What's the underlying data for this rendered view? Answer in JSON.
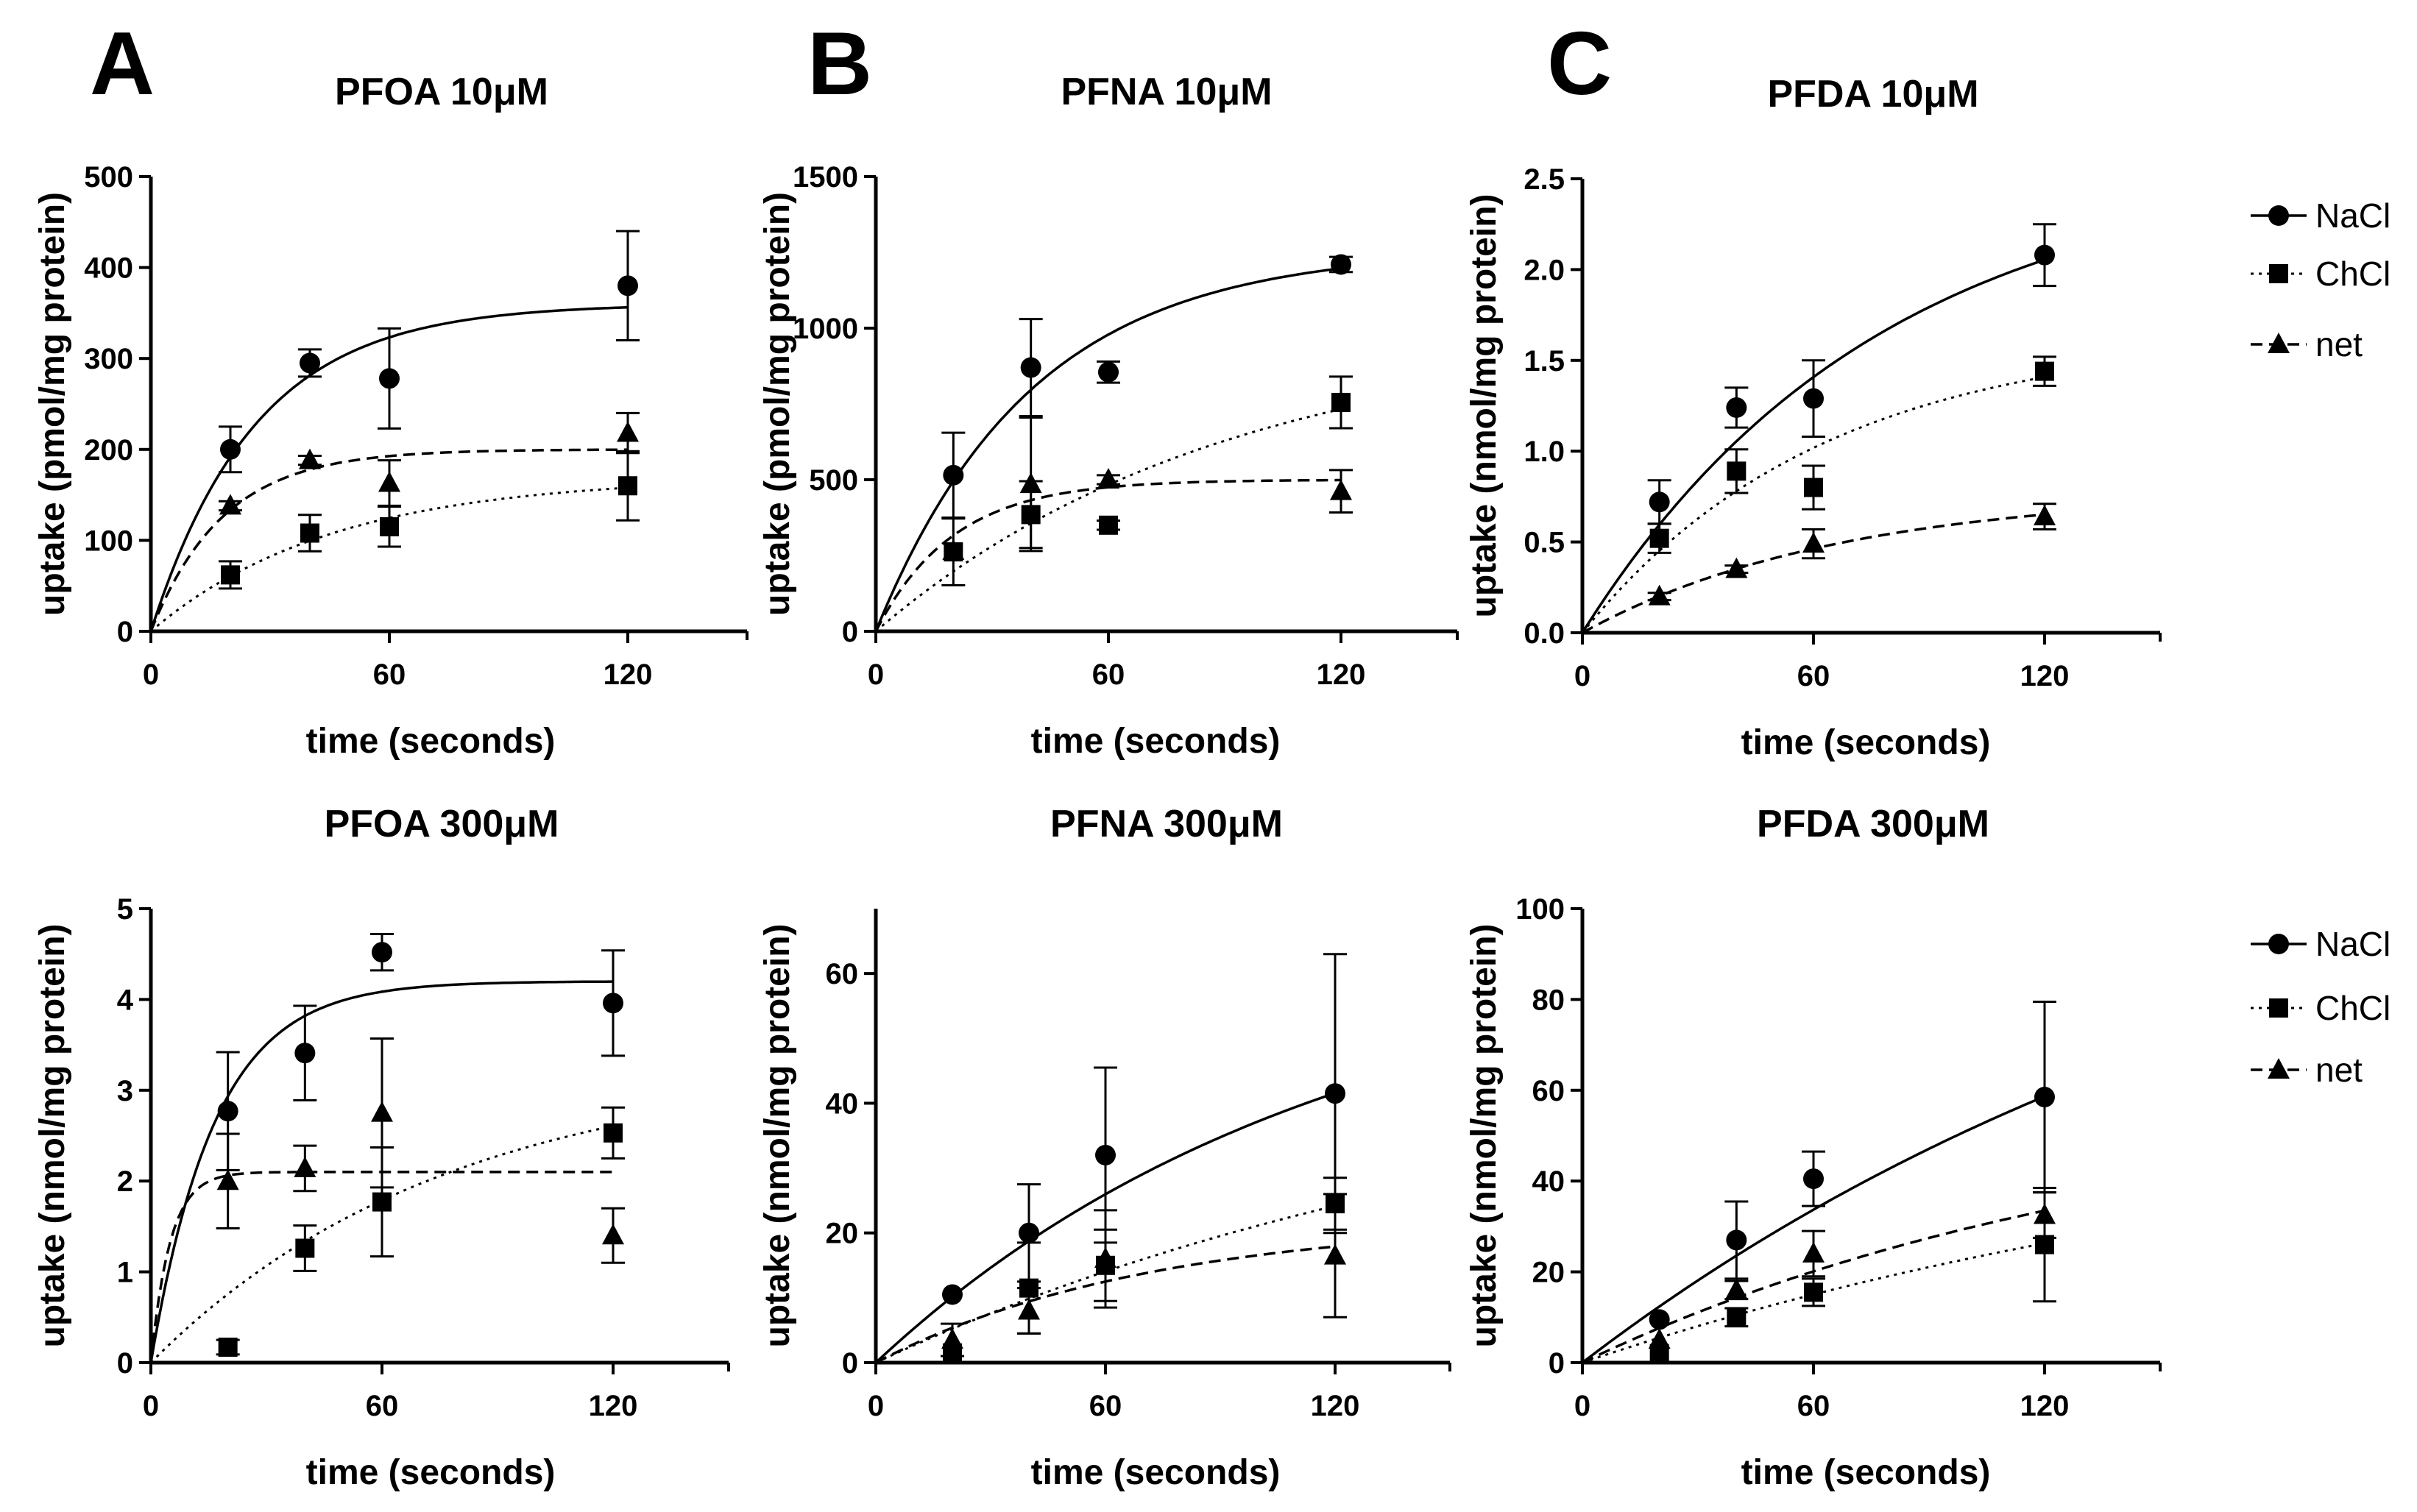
{
  "figure": {
    "panel_labels": [
      "A",
      "B",
      "C"
    ],
    "series_names": [
      "NaCl",
      "ChCl",
      "net"
    ],
    "legends": [
      {
        "entries": [
          {
            "name": "NaCl",
            "marker": "circle",
            "line": "solid"
          },
          {
            "name": "ChCl",
            "marker": "square",
            "line": "dotted"
          },
          {
            "name": "net",
            "marker": "triangle",
            "line": "dashed"
          }
        ]
      },
      {
        "entries": [
          {
            "name": "NaCl",
            "marker": "circle",
            "line": "solid"
          },
          {
            "name": "ChCl",
            "marker": "square",
            "line": "dotted"
          },
          {
            "name": "net",
            "marker": "triangle",
            "line": "dashed"
          }
        ]
      }
    ]
  },
  "chart_data": [
    {
      "type": "scatter",
      "title": "PFOA 10μM",
      "xlabel": "time (seconds)",
      "ylabel": "uptake (pmol/mg protein)",
      "xlim": [
        0,
        150
      ],
      "ylim": [
        0,
        500
      ],
      "xticks": [
        "0",
        "60",
        "120"
      ],
      "yticks": [
        "0",
        "100",
        "200",
        "300",
        "400",
        "500"
      ],
      "ytick_values": [
        0,
        100,
        200,
        300,
        400,
        500
      ],
      "x": [
        20,
        40,
        60,
        120
      ],
      "series": [
        {
          "name": "NaCl",
          "marker": "circle",
          "values": [
            200,
            295,
            278,
            380
          ],
          "err": [
            25,
            15,
            55,
            60
          ],
          "fit": {
            "vmax": 360,
            "k": 0.038
          }
        },
        {
          "name": "ChCl",
          "marker": "square",
          "values": [
            62,
            108,
            115,
            160
          ],
          "err": [
            15,
            20,
            22,
            38
          ],
          "fit": {
            "vmax": 170,
            "k": 0.022
          }
        },
        {
          "name": "net",
          "marker": "triangle",
          "values": [
            138,
            188,
            163,
            218
          ],
          "err": [
            5,
            5,
            25,
            22
          ],
          "fit": {
            "vmax": 200,
            "k": 0.055
          }
        }
      ]
    },
    {
      "type": "scatter",
      "title": "PFNA 10μM",
      "xlabel": "time (seconds)",
      "ylabel": "uptake (pmol/mg protein)",
      "xlim": [
        0,
        150
      ],
      "ylim": [
        0,
        1500
      ],
      "xticks": [
        "0",
        "60",
        "120"
      ],
      "yticks": [
        "0",
        "500",
        "1000",
        "1500"
      ],
      "ytick_values": [
        0,
        500,
        1000,
        1500
      ],
      "x": [
        20,
        40,
        60,
        120
      ],
      "series": [
        {
          "name": "NaCl",
          "marker": "circle",
          "values": [
            515,
            870,
            855,
            1210
          ],
          "err": [
            140,
            160,
            35,
            25
          ],
          "fit": {
            "vmax": 1260,
            "k": 0.025
          }
        },
        {
          "name": "ChCl",
          "marker": "square",
          "values": [
            262,
            385,
            350,
            755
          ],
          "err": [
            110,
            110,
            15,
            85
          ],
          "fit": {
            "vmax": 1000,
            "k": 0.011
          }
        },
        {
          "name": "net",
          "marker": "triangle",
          "values": [
            265,
            485,
            500,
            462
          ],
          "err": [
            0,
            220,
            15,
            70
          ],
          "fit": {
            "vmax": 500,
            "k": 0.05
          }
        }
      ]
    },
    {
      "type": "scatter",
      "title": "PFDA 10μM",
      "xlabel": "time (seconds)",
      "ylabel": "uptake (nmol/mg protein)",
      "xlim": [
        0,
        150
      ],
      "ylim": [
        0,
        2.5
      ],
      "xticks": [
        "0",
        "60",
        "120"
      ],
      "yticks": [
        "0.0",
        "0.5",
        "1.0",
        "1.5",
        "2.0",
        "2.5"
      ],
      "ytick_values": [
        0,
        0.5,
        1.0,
        1.5,
        2.0,
        2.5
      ],
      "x": [
        20,
        40,
        60,
        120
      ],
      "series": [
        {
          "name": "NaCl",
          "marker": "circle",
          "values": [
            0.72,
            1.24,
            1.29,
            2.08
          ],
          "err": [
            0.12,
            0.11,
            0.21,
            0.17
          ],
          "fit": {
            "vmax": 2.6,
            "k": 0.013
          }
        },
        {
          "name": "ChCl",
          "marker": "square",
          "values": [
            0.52,
            0.89,
            0.8,
            1.44
          ],
          "err": [
            0.08,
            0.12,
            0.12,
            0.08
          ],
          "fit": {
            "vmax": 1.65,
            "k": 0.016
          }
        },
        {
          "name": "net",
          "marker": "triangle",
          "values": [
            0.2,
            0.35,
            0.49,
            0.64
          ],
          "err": [
            0.02,
            0.02,
            0.08,
            0.07
          ],
          "fit": {
            "vmax": 0.78,
            "k": 0.015
          }
        }
      ]
    },
    {
      "type": "scatter",
      "title": "PFOA 300μM",
      "xlabel": "time (seconds)",
      "ylabel": "uptake (nmol/mg protein)",
      "xlim": [
        0,
        150
      ],
      "ylim": [
        0,
        5
      ],
      "xticks": [
        "0",
        "60",
        "120"
      ],
      "yticks": [
        "0",
        "1",
        "2",
        "3",
        "4",
        "5"
      ],
      "ytick_values": [
        0,
        1,
        2,
        3,
        4,
        5
      ],
      "x": [
        20,
        40,
        60,
        120
      ],
      "series": [
        {
          "name": "NaCl",
          "marker": "circle",
          "values": [
            2.77,
            3.41,
            4.52,
            3.96
          ],
          "err": [
            0.65,
            0.52,
            0.2,
            0.58
          ],
          "fit": {
            "vmax": 4.2,
            "k": 0.06
          }
        },
        {
          "name": "ChCl",
          "marker": "square",
          "values": [
            0.17,
            1.26,
            1.77,
            2.53
          ],
          "err": [
            0.08,
            0.25,
            0.6,
            0.28
          ],
          "fit": {
            "vmax": 3.3,
            "k": 0.013
          }
        },
        {
          "name": "net",
          "marker": "triangle",
          "values": [
            2.0,
            2.14,
            2.75,
            1.4
          ],
          "err": [
            0.52,
            0.25,
            0.82,
            0.3
          ],
          "fit": {
            "vmax": 2.1,
            "k": 0.2
          }
        }
      ]
    },
    {
      "type": "scatter",
      "title": "PFNA 300μM",
      "xlabel": "time (seconds)",
      "ylabel": "uptake (nmol/mg protein)",
      "xlim": [
        0,
        150
      ],
      "ylim": [
        0,
        70
      ],
      "xticks": [
        "0",
        "60",
        "120"
      ],
      "yticks": [
        "0",
        "20",
        "40",
        "60"
      ],
      "ytick_values": [
        0,
        20,
        40,
        60
      ],
      "x": [
        20,
        40,
        60,
        120
      ],
      "series": [
        {
          "name": "NaCl",
          "marker": "circle",
          "values": [
            10.5,
            20,
            32,
            41.5
          ],
          "err": [
            0,
            7.5,
            13.5,
            21.5
          ],
          "fit": {
            "vmax": 65,
            "k": 0.0085
          }
        },
        {
          "name": "ChCl",
          "marker": "square",
          "values": [
            1.5,
            11.5,
            15,
            24.5
          ],
          "err": [
            0,
            7,
            5.5,
            4
          ],
          "fit": {
            "vmax": 50,
            "k": 0.0055
          }
        },
        {
          "name": "net",
          "marker": "triangle",
          "values": [
            3.5,
            8,
            16,
            16.5
          ],
          "err": [
            2.5,
            3.5,
            7.5,
            9.5
          ],
          "fit": {
            "vmax": 22,
            "k": 0.014
          }
        }
      ]
    },
    {
      "type": "scatter",
      "title": "PFDA 300μM",
      "xlabel": "time (seconds)",
      "ylabel": "uptake (nmol/mg protein)",
      "xlim": [
        0,
        150
      ],
      "ylim": [
        0,
        100
      ],
      "xticks": [
        "0",
        "60",
        "120"
      ],
      "yticks": [
        "0",
        "20",
        "40",
        "60",
        "80",
        "100"
      ],
      "ytick_values": [
        0,
        20,
        40,
        60,
        80,
        100
      ],
      "x": [
        20,
        40,
        60,
        120
      ],
      "series": [
        {
          "name": "NaCl",
          "marker": "circle",
          "values": [
            9.5,
            27,
            40.5,
            58.5
          ],
          "err": [
            0,
            8.5,
            6,
            21
          ],
          "fit": {
            "vmax": 130,
            "k": 0.005
          }
        },
        {
          "name": "ChCl",
          "marker": "square",
          "values": [
            2,
            10,
            15.5,
            26
          ],
          "err": [
            0,
            2,
            3,
            12.5
          ],
          "fit": {
            "vmax": 60,
            "k": 0.0048
          }
        },
        {
          "name": "net",
          "marker": "triangle",
          "values": [
            5,
            16,
            24,
            32.5
          ],
          "err": [
            0,
            2,
            5,
            5
          ],
          "fit": {
            "vmax": 60,
            "k": 0.0068
          }
        }
      ]
    }
  ]
}
